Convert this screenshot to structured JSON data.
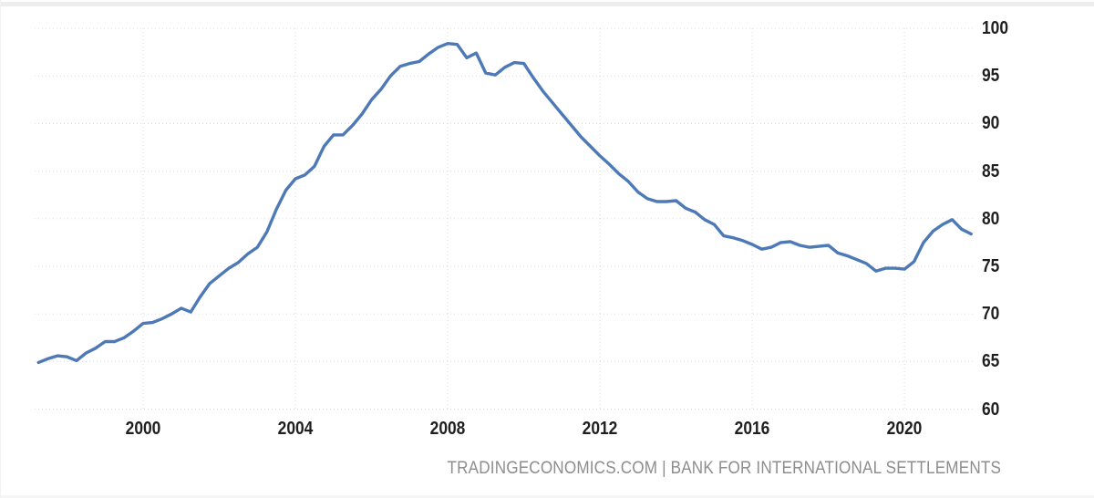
{
  "footer": {
    "attribution": "TRADINGECONOMICS.COM | BANK FOR INTERNATIONAL SETTLEMENTS"
  },
  "chart_data": {
    "type": "line",
    "title": "",
    "line_color": "#4e79b7",
    "grid": "dotted",
    "gridline_color": "#dcdcdc",
    "legend": "none",
    "x_ticks": [
      2000,
      2004,
      2008,
      2012,
      2016,
      2020
    ],
    "y_ticks": [
      100,
      95,
      90,
      85,
      80,
      75,
      70,
      65,
      60
    ],
    "xlim": [
      1997.15,
      2021.84
    ],
    "ylim": [
      60,
      100
    ],
    "series": [
      {
        "x_start": 1997.25,
        "x_step": 0.25,
        "values": [
          64.9,
          65.3,
          65.6,
          65.5,
          65.1,
          65.9,
          66.4,
          67.1,
          67.1,
          67.5,
          68.2,
          69.0,
          69.1,
          69.5,
          70.0,
          70.6,
          70.2,
          71.8,
          73.2,
          74.0,
          74.8,
          75.4,
          76.3,
          77.0,
          78.6,
          81.0,
          83.0,
          84.2,
          84.6,
          85.5,
          87.6,
          88.8,
          88.8,
          89.8,
          91.0,
          92.5,
          93.6,
          95.0,
          96.0,
          96.3,
          96.5,
          97.3,
          98.0,
          98.4,
          98.3,
          96.9,
          97.4,
          95.3,
          95.1,
          95.9,
          96.4,
          96.3,
          94.8,
          93.4,
          92.2,
          91.0,
          89.8,
          88.6,
          87.6,
          86.6,
          85.7,
          84.7,
          83.9,
          82.8,
          82.1,
          81.8,
          81.8,
          81.9,
          81.1,
          80.7,
          79.9,
          79.4,
          78.2,
          78.0,
          77.7,
          77.3,
          76.8,
          77.0,
          77.5,
          77.6,
          77.2,
          77.0,
          77.1,
          77.2,
          76.4,
          76.1,
          75.7,
          75.3,
          74.5,
          74.8,
          74.8,
          74.7,
          75.5,
          77.5,
          78.7,
          79.4,
          79.9,
          78.9,
          78.4
        ]
      }
    ]
  }
}
